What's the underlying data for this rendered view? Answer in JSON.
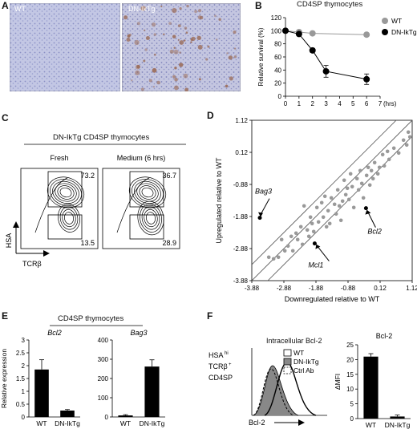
{
  "panels": {
    "a": {
      "letter": "A",
      "images": [
        {
          "label": "WT"
        },
        {
          "label": "DN-IkTg"
        }
      ],
      "colors": {
        "background": "#c9cde8",
        "stain": "#9a6a55"
      }
    },
    "b": {
      "letter": "B",
      "title": "CD4SP thymocytes",
      "legend": [
        {
          "name": "WT"
        },
        {
          "name": "DN-IkTg"
        }
      ]
    },
    "c": {
      "letter": "C",
      "title": "DN-IkTg CD4SP thymocytes",
      "subpanels": [
        {
          "label": "Fresh",
          "gate_hi": "73.2",
          "gate_lo": "13.5"
        },
        {
          "label": "Medium (6 hrs)",
          "gate_hi": "36.7",
          "gate_lo": "28.9"
        }
      ],
      "yaxis": "HSA",
      "xaxis": "TCRβ"
    },
    "d": {
      "letter": "D",
      "annotations": {
        "bag3": "Bag3",
        "mcl1": "Mcl1",
        "bcl2": "Bcl2"
      }
    },
    "e": {
      "letter": "E",
      "title": "CD4SP thymocytes"
    },
    "f": {
      "letter": "F",
      "hist_title": "Intracellular Bcl-2",
      "gate_label": [
        "HSA",
        "hi",
        "TCRβ",
        "+",
        "CD4SP"
      ],
      "xaxis": "Bcl-2",
      "legend": [
        {
          "name": "WT",
          "fill": "#ffffff"
        },
        {
          "name": "DN-IkTg",
          "fill": "#888888"
        },
        {
          "name": "Ctrl Ab",
          "fill": "#ffffff",
          "dashed": true
        }
      ]
    }
  },
  "chart_data": [
    {
      "id": "b",
      "type": "line",
      "title": "CD4SP thymocytes",
      "xlabel": "(hrs)",
      "ylabel": "Relative survival (%)",
      "xlim": [
        0,
        7
      ],
      "ylim": [
        0,
        120
      ],
      "xticks": [
        0,
        1,
        2,
        3,
        4,
        5,
        6,
        7
      ],
      "yticks": [
        0,
        20,
        40,
        60,
        80,
        100,
        120
      ],
      "series": [
        {
          "name": "WT",
          "color": "#999999",
          "x": [
            0,
            1,
            2,
            6
          ],
          "y": [
            100,
            98,
            96,
            94
          ],
          "err": [
            0,
            1,
            1,
            2
          ]
        },
        {
          "name": "DN-IkTg",
          "color": "#000000",
          "x": [
            0,
            1,
            2,
            3,
            6
          ],
          "y": [
            100,
            95,
            70,
            38,
            26
          ],
          "err": [
            0,
            2,
            3,
            9,
            8
          ]
        }
      ]
    },
    {
      "id": "d",
      "type": "scatter",
      "xlabel": "Downregulated relative to WT",
      "ylabel": "Upregulated relative to WT",
      "xlim": [
        -3.88,
        1.12
      ],
      "ylim": [
        -3.88,
        1.12
      ],
      "xticks": [
        -3.88,
        -2.88,
        -1.88,
        -0.88,
        0.12,
        1.12
      ],
      "yticks": [
        -3.88,
        -2.88,
        -1.88,
        -0.88,
        0.12,
        1.12
      ],
      "highlights": [
        {
          "name": "Bag3",
          "x": -3.63,
          "y": -1.92
        },
        {
          "name": "Mcl1",
          "x": -1.92,
          "y": -2.72
        },
        {
          "name": "Bcl2",
          "x": -0.32,
          "y": -1.62
        }
      ],
      "points": [
        [
          -3.35,
          -3.15
        ],
        [
          -3.2,
          -3.2
        ],
        [
          -3.05,
          -3.15
        ],
        [
          -2.95,
          -2.6
        ],
        [
          -2.85,
          -2.95
        ],
        [
          -2.75,
          -2.8
        ],
        [
          -2.65,
          -2.5
        ],
        [
          -2.6,
          -2.95
        ],
        [
          -2.5,
          -2.4
        ],
        [
          -2.45,
          -2.6
        ],
        [
          -2.35,
          -2.2
        ],
        [
          -2.3,
          -2.75
        ],
        [
          -2.25,
          -1.55
        ],
        [
          -2.15,
          -2.3
        ],
        [
          -2.1,
          -2.5
        ],
        [
          -2.05,
          -1.9
        ],
        [
          -2.0,
          -2.1
        ],
        [
          -1.95,
          -2.35
        ],
        [
          -1.85,
          -1.6
        ],
        [
          -1.8,
          -2.05
        ],
        [
          -1.7,
          -1.45
        ],
        [
          -1.65,
          -1.9
        ],
        [
          -1.6,
          -1.25
        ],
        [
          -1.55,
          -2.2
        ],
        [
          -1.5,
          -1.7
        ],
        [
          -1.45,
          -2.1
        ],
        [
          -1.4,
          -1.3
        ],
        [
          -1.3,
          -1.5
        ],
        [
          -1.25,
          -1.8
        ],
        [
          -1.2,
          -1.05
        ],
        [
          -1.15,
          -1.55
        ],
        [
          -1.1,
          -2.0
        ],
        [
          -1.05,
          -1.4
        ],
        [
          -1.0,
          -0.75
        ],
        [
          -0.95,
          -1.2
        ],
        [
          -0.9,
          -1.0
        ],
        [
          -0.85,
          -1.35
        ],
        [
          -0.8,
          -0.55
        ],
        [
          -0.75,
          -0.95
        ],
        [
          -0.7,
          -1.6
        ],
        [
          -0.6,
          -0.7
        ],
        [
          -0.55,
          -1.05
        ],
        [
          -0.5,
          -0.45
        ],
        [
          -0.45,
          -0.85
        ],
        [
          -0.4,
          -1.3
        ],
        [
          -0.3,
          -0.6
        ],
        [
          -0.25,
          -0.35
        ],
        [
          -0.2,
          -0.9
        ],
        [
          -0.15,
          -0.45
        ],
        [
          -0.1,
          -0.7
        ],
        [
          -0.05,
          -0.2
        ],
        [
          0.05,
          -0.55
        ],
        [
          0.1,
          -0.35
        ],
        [
          0.2,
          0.05
        ],
        [
          0.25,
          -0.3
        ],
        [
          0.35,
          0.15
        ],
        [
          0.4,
          -0.1
        ],
        [
          0.55,
          0.25
        ],
        [
          0.7,
          0.1
        ],
        [
          0.85,
          0.5
        ],
        [
          0.95,
          0.35
        ],
        [
          1.0,
          0.75
        ],
        [
          1.05,
          0.6
        ]
      ]
    },
    {
      "id": "e1",
      "type": "bar",
      "title": "Bcl2",
      "ylabel": "Relative expression",
      "categories": [
        "WT",
        "DN-IkTg"
      ],
      "values": [
        1.85,
        0.25
      ],
      "errors": [
        0.38,
        0.04
      ],
      "ylim": [
        0,
        3.0
      ],
      "yticks": [
        0,
        0.5,
        1.0,
        1.5,
        2.0,
        2.5,
        3.0
      ]
    },
    {
      "id": "e2",
      "type": "bar",
      "title": "Bag3",
      "categories": [
        "WT",
        "DN-IkTg"
      ],
      "values": [
        8,
        262
      ],
      "errors": [
        4,
        35
      ],
      "ylim": [
        0,
        400
      ],
      "yticks": [
        0,
        100,
        200,
        300,
        400
      ]
    },
    {
      "id": "f2",
      "type": "bar",
      "title": "Bcl-2",
      "ylabel": "ΔMFI",
      "categories": [
        "WT",
        "DN-IkTg"
      ],
      "values": [
        21,
        0.7
      ],
      "errors": [
        1.0,
        0.5
      ],
      "ylim": [
        0,
        25
      ],
      "yticks": [
        0,
        5,
        10,
        15,
        20,
        25
      ]
    }
  ]
}
